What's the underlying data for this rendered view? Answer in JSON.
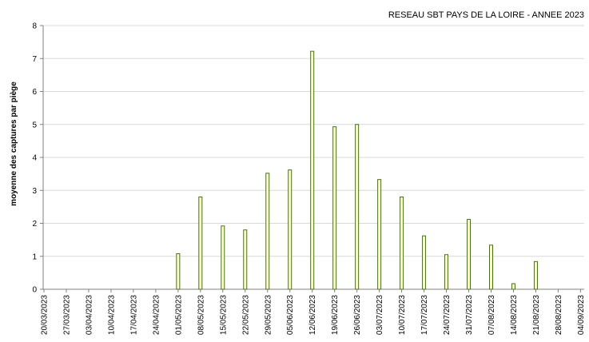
{
  "chart_data": {
    "type": "bar",
    "title": "RESEAU SBT PAYS DE LA LOIRE - ANNEE 2023",
    "xlabel": "",
    "ylabel": "moyenne  des captures  par piège",
    "ylim": [
      0,
      8
    ],
    "yticks": [
      0,
      1,
      2,
      3,
      4,
      5,
      6,
      7,
      8
    ],
    "grid": true,
    "legend": "none",
    "colors": {
      "bar_fill": "#ffffcc",
      "bar_stroke": "#4a6b22",
      "grid": "#d9d9d9",
      "axis": "#808080",
      "text": "#000000"
    },
    "categories": [
      "20/03/2023",
      "27/03/2023",
      "03/04/2023",
      "10/04/2023",
      "17/04/2023",
      "24/04/2023",
      "01/05/2023",
      "08/05/2023",
      "15/05/2023",
      "22/05/2023",
      "29/05/2023",
      "05/06/2023",
      "12/06/2023",
      "19/06/2023",
      "26/06/2023",
      "03/07/2023",
      "10/07/2023",
      "17/07/2023",
      "24/07/2023",
      "31/07/2023",
      "07/08/2023",
      "14/08/2023",
      "21/08/2023",
      "28/08/2023",
      "04/09/2023"
    ],
    "values": [
      0,
      0,
      0,
      0,
      0,
      0,
      1.08,
      2.8,
      1.92,
      1.8,
      3.52,
      3.62,
      7.22,
      4.93,
      5.0,
      3.33,
      2.8,
      1.62,
      1.05,
      2.12,
      1.34,
      0.17,
      0.84,
      0,
      0
    ]
  }
}
